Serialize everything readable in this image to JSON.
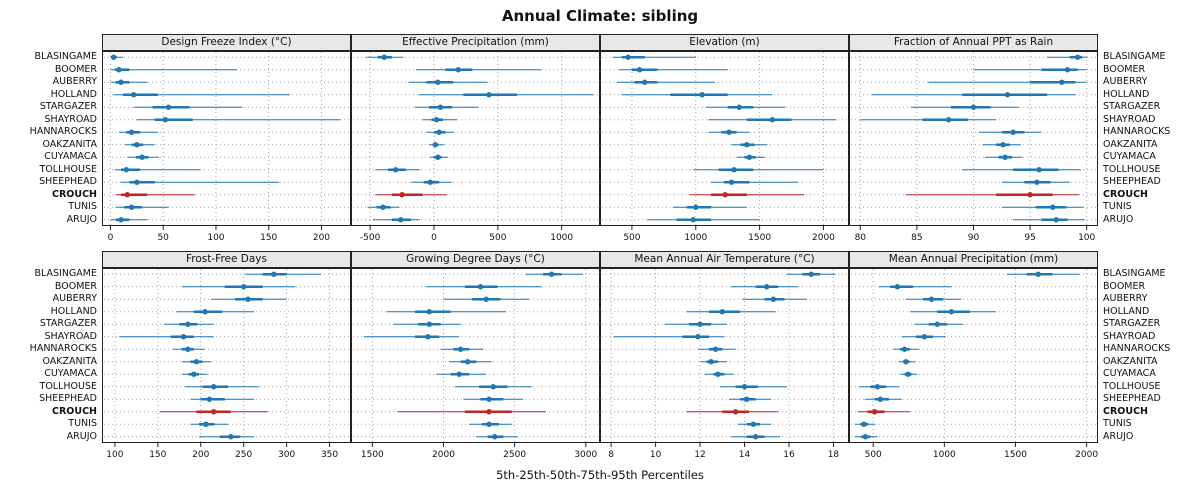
{
  "title": "Annual Climate: sibling",
  "caption": "5th-25th-50th-75th-95th Percentiles",
  "style": {
    "series_color": "#1f77b4",
    "highlight_color": "#c22222",
    "strip_bg": "#e8e8e8",
    "grid_color": "#a3a3a3",
    "border_color": "#222222"
  },
  "chart_data": {
    "type": "dotplot",
    "subtype": "percentile-intervals",
    "percentiles": [
      5,
      25,
      50,
      75,
      95
    ],
    "legend_position": "none",
    "grid": "dotted",
    "highlight_site": "CROUCH",
    "sites": [
      "BLASINGAME",
      "BOOMER",
      "AUBERRY",
      "HOLLAND",
      "STARGAZER",
      "SHAYROAD",
      "HANNAROCKS",
      "OAKZANITA",
      "CUYAMACA",
      "TOLLHOUSE",
      "SHEEPHEAD",
      "CROUCH",
      "TUNIS",
      "ARUJO"
    ],
    "panels": [
      {
        "title": "Design Freeze Index (°C)",
        "xlim": [
          -8,
          228
        ],
        "ticks": [
          0,
          50,
          100,
          150,
          200
        ],
        "values": [
          [
            0,
            1,
            3,
            6,
            12
          ],
          [
            0,
            4,
            8,
            18,
            120
          ],
          [
            0,
            5,
            10,
            18,
            35
          ],
          [
            3,
            12,
            22,
            45,
            170
          ],
          [
            22,
            40,
            55,
            75,
            125
          ],
          [
            25,
            42,
            52,
            78,
            218
          ],
          [
            8,
            15,
            20,
            28,
            45
          ],
          [
            14,
            20,
            25,
            31,
            42
          ],
          [
            16,
            24,
            30,
            36,
            46
          ],
          [
            4,
            10,
            15,
            28,
            85
          ],
          [
            10,
            18,
            25,
            42,
            160
          ],
          [
            5,
            10,
            16,
            35,
            80
          ],
          [
            5,
            13,
            20,
            30,
            55
          ],
          [
            0,
            5,
            10,
            18,
            35
          ]
        ]
      },
      {
        "title": "Effective Precipitation (mm)",
        "xlim": [
          -650,
          1300
        ],
        "ticks": [
          -500,
          0,
          500,
          1000
        ],
        "values": [
          [
            -530,
            -440,
            -390,
            -330,
            -240
          ],
          [
            -140,
            90,
            190,
            300,
            840
          ],
          [
            -200,
            -60,
            30,
            150,
            420
          ],
          [
            -120,
            230,
            430,
            650,
            1250
          ],
          [
            -150,
            -40,
            50,
            140,
            350
          ],
          [
            -90,
            -20,
            20,
            70,
            180
          ],
          [
            -60,
            0,
            40,
            90,
            160
          ],
          [
            -40,
            -10,
            10,
            35,
            80
          ],
          [
            -30,
            0,
            30,
            60,
            110
          ],
          [
            -460,
            -360,
            -300,
            -220,
            -110
          ],
          [
            -180,
            -80,
            -30,
            40,
            140
          ],
          [
            -460,
            -330,
            -250,
            -90,
            100
          ],
          [
            -520,
            -450,
            -400,
            -340,
            -270
          ],
          [
            -480,
            -330,
            -260,
            -180,
            -110
          ]
        ]
      },
      {
        "title": "Elevation (m)",
        "xlim": [
          250,
          2200
        ],
        "ticks": [
          500,
          1000,
          1500,
          2000
        ],
        "values": [
          [
            350,
            420,
            470,
            600,
            1000
          ],
          [
            400,
            500,
            560,
            700,
            1250
          ],
          [
            380,
            520,
            600,
            700,
            1150
          ],
          [
            420,
            800,
            1050,
            1250,
            1600
          ],
          [
            1080,
            1250,
            1340,
            1450,
            1700
          ],
          [
            1100,
            1400,
            1600,
            1750,
            2100
          ],
          [
            1100,
            1200,
            1260,
            1320,
            1420
          ],
          [
            1280,
            1350,
            1400,
            1460,
            1560
          ],
          [
            1320,
            1380,
            1420,
            1470,
            1540
          ],
          [
            980,
            1180,
            1300,
            1450,
            2000
          ],
          [
            1120,
            1220,
            1280,
            1420,
            1800
          ],
          [
            950,
            1120,
            1230,
            1400,
            1850
          ],
          [
            820,
            930,
            1000,
            1120,
            1400
          ],
          [
            620,
            850,
            980,
            1120,
            1500
          ]
        ]
      },
      {
        "title": "Fraction of Annual PPT as Rain",
        "xlim": [
          79,
          101
        ],
        "ticks": [
          80,
          85,
          90,
          95,
          100
        ],
        "values": [
          [
            96.5,
            98.5,
            99.2,
            99.6,
            100
          ],
          [
            90,
            96,
            98.3,
            99.2,
            100
          ],
          [
            86,
            95,
            97.8,
            99,
            100
          ],
          [
            81,
            89,
            93,
            96.5,
            99
          ],
          [
            84.5,
            88,
            90,
            91.5,
            94
          ],
          [
            80,
            85.5,
            87.8,
            89.5,
            92
          ],
          [
            90.5,
            92.5,
            93.5,
            94.5,
            96
          ],
          [
            90.8,
            92,
            92.6,
            93.2,
            94.2
          ],
          [
            91,
            92.2,
            92.8,
            93.4,
            94.3
          ],
          [
            89,
            93.5,
            95.8,
            97.5,
            99.5
          ],
          [
            92.5,
            94.5,
            95.6,
            96.8,
            98.5
          ],
          [
            84,
            92,
            95,
            97,
            99.3
          ],
          [
            92.5,
            95.5,
            97,
            98.2,
            99.7
          ],
          [
            93.5,
            96,
            97.3,
            98.3,
            99.8
          ]
        ]
      },
      {
        "title": "Frost-Free Days",
        "xlim": [
          85,
          375
        ],
        "ticks": [
          100,
          150,
          200,
          250,
          300,
          350
        ],
        "values": [
          [
            252,
            272,
            285,
            300,
            340
          ],
          [
            178,
            228,
            250,
            272,
            310
          ],
          [
            212,
            240,
            255,
            272,
            300
          ],
          [
            172,
            192,
            205,
            225,
            262
          ],
          [
            158,
            175,
            185,
            196,
            215
          ],
          [
            105,
            165,
            180,
            192,
            215
          ],
          [
            168,
            178,
            185,
            192,
            205
          ],
          [
            178,
            188,
            195,
            202,
            212
          ],
          [
            178,
            186,
            192,
            198,
            208
          ],
          [
            182,
            202,
            215,
            232,
            268
          ],
          [
            188,
            200,
            210,
            228,
            262
          ],
          [
            152,
            195,
            215,
            235,
            278
          ],
          [
            188,
            198,
            206,
            216,
            232
          ],
          [
            198,
            222,
            235,
            246,
            262
          ]
        ]
      },
      {
        "title": "Growing Degree Days (°C)",
        "xlim": [
          1350,
          3100
        ],
        "ticks": [
          1500,
          2000,
          2500,
          3000
        ],
        "values": [
          [
            2580,
            2700,
            2760,
            2830,
            2980
          ],
          [
            1880,
            2150,
            2260,
            2380,
            2690
          ],
          [
            2000,
            2200,
            2300,
            2400,
            2600
          ],
          [
            1600,
            1800,
            1900,
            2050,
            2440
          ],
          [
            1650,
            1820,
            1900,
            1980,
            2120
          ],
          [
            1440,
            1800,
            1890,
            1970,
            2110
          ],
          [
            1980,
            2070,
            2120,
            2180,
            2280
          ],
          [
            2040,
            2120,
            2170,
            2230,
            2340
          ],
          [
            1950,
            2050,
            2110,
            2180,
            2300
          ],
          [
            2080,
            2250,
            2350,
            2450,
            2620
          ],
          [
            2140,
            2260,
            2320,
            2420,
            2560
          ],
          [
            1680,
            2150,
            2320,
            2480,
            2720
          ],
          [
            2180,
            2270,
            2320,
            2390,
            2480
          ],
          [
            2230,
            2310,
            2360,
            2420,
            2520
          ]
        ]
      },
      {
        "title": "Mean Annual Air Temperature (°C)",
        "xlim": [
          7.5,
          18.7
        ],
        "ticks": [
          8,
          10,
          12,
          14,
          16,
          18
        ],
        "values": [
          [
            15.9,
            16.6,
            17.0,
            17.4,
            18.1
          ],
          [
            13.4,
            14.5,
            15.0,
            15.5,
            16.4
          ],
          [
            13.9,
            14.9,
            15.3,
            15.8,
            16.8
          ],
          [
            11.4,
            12.4,
            13.0,
            13.8,
            15.4
          ],
          [
            10.4,
            11.5,
            12.0,
            12.5,
            13.2
          ],
          [
            8.1,
            11.2,
            11.9,
            12.4,
            13.1
          ],
          [
            11.9,
            12.4,
            12.7,
            13.0,
            13.6
          ],
          [
            12.0,
            12.3,
            12.5,
            12.8,
            13.2
          ],
          [
            12.2,
            12.6,
            12.8,
            13.1,
            13.5
          ],
          [
            12.9,
            13.6,
            14.0,
            14.6,
            15.9
          ],
          [
            13.3,
            13.8,
            14.1,
            14.5,
            15.2
          ],
          [
            11.4,
            13.0,
            13.6,
            14.2,
            15.5
          ],
          [
            13.7,
            14.1,
            14.4,
            14.7,
            15.2
          ],
          [
            13.4,
            14.1,
            14.5,
            14.9,
            15.6
          ]
        ]
      },
      {
        "title": "Mean Annual Precipitation (mm)",
        "xlim": [
          330,
          2080
        ],
        "ticks": [
          500,
          1000,
          1500,
          2000
        ],
        "values": [
          [
            1440,
            1580,
            1660,
            1760,
            1950
          ],
          [
            540,
            620,
            670,
            780,
            1050
          ],
          [
            730,
            850,
            910,
            990,
            1120
          ],
          [
            760,
            950,
            1050,
            1180,
            1360
          ],
          [
            790,
            890,
            950,
            1020,
            1130
          ],
          [
            700,
            800,
            860,
            920,
            1010
          ],
          [
            640,
            690,
            720,
            760,
            820
          ],
          [
            680,
            710,
            730,
            755,
            795
          ],
          [
            690,
            720,
            745,
            770,
            810
          ],
          [
            400,
            480,
            530,
            590,
            680
          ],
          [
            440,
            510,
            550,
            610,
            700
          ],
          [
            390,
            460,
            510,
            580,
            760
          ],
          [
            370,
            410,
            435,
            465,
            510
          ],
          [
            370,
            415,
            445,
            480,
            530
          ]
        ]
      }
    ]
  }
}
